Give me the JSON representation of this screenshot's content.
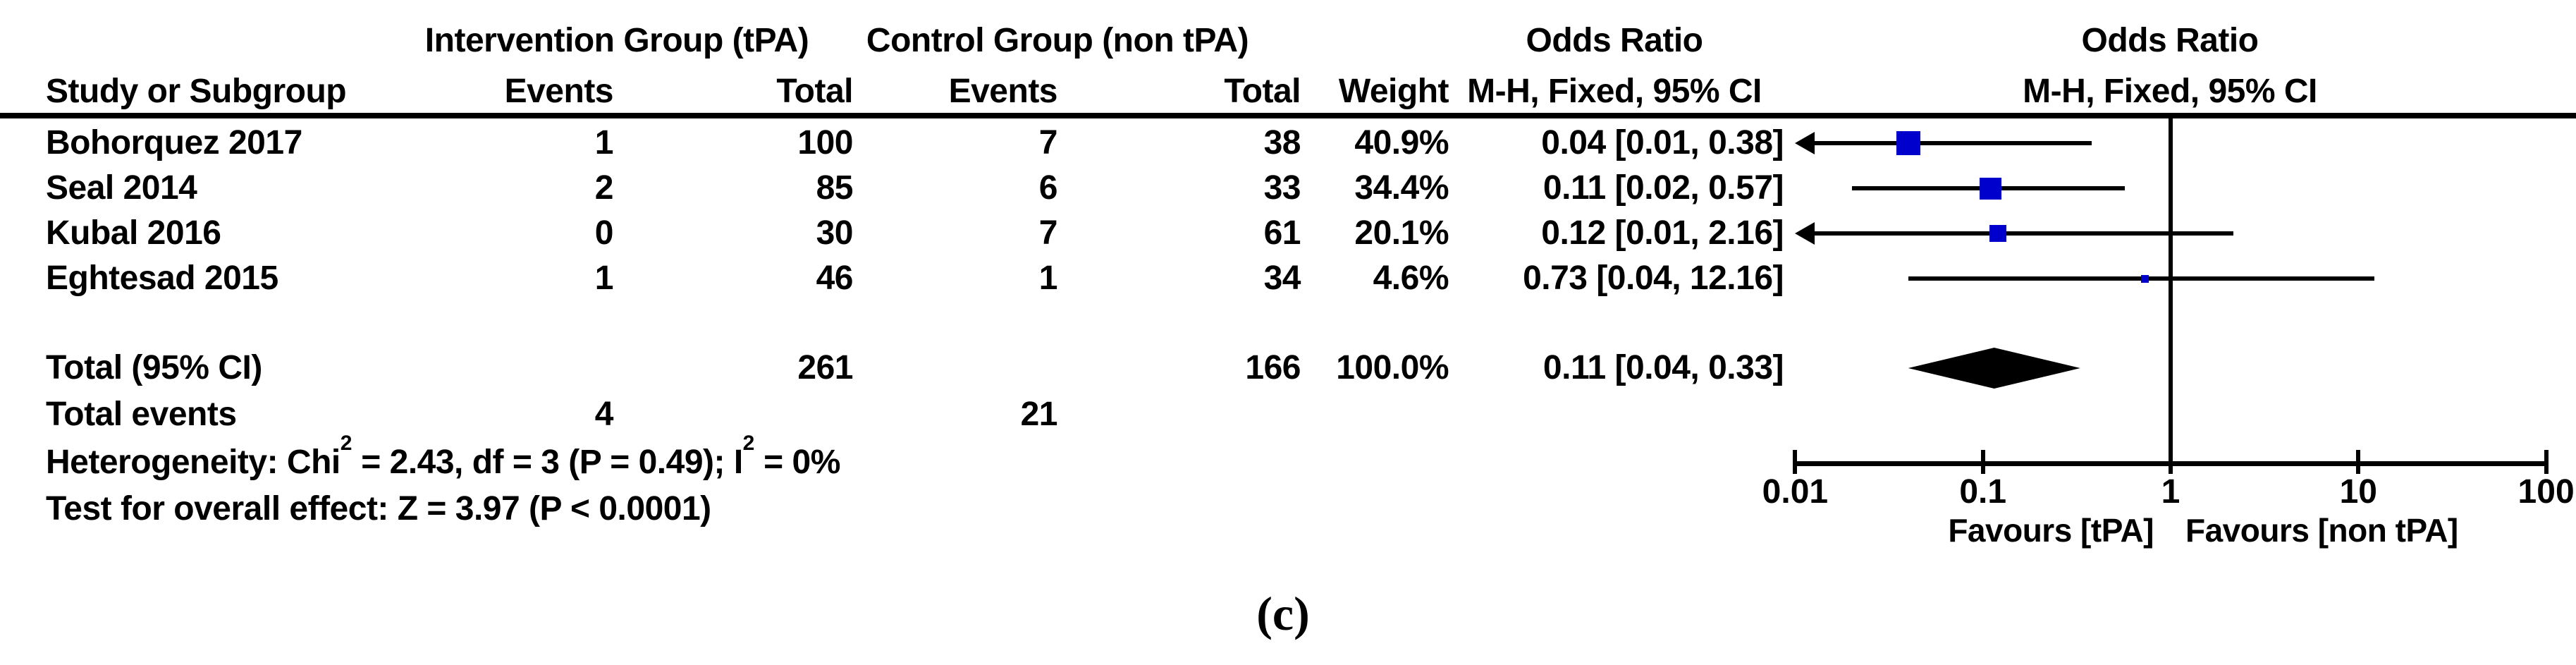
{
  "figure": {
    "caption": "(c)"
  },
  "table": {
    "group_headers": {
      "intervention": "Intervention Group (tPA)",
      "control": "Control Group (non tPA)",
      "or_text": "Odds Ratio",
      "or_plot": "Odds Ratio"
    },
    "col_headers": {
      "study": "Study or Subgroup",
      "int_events": "Events",
      "int_total": "Total",
      "ctl_events": "Events",
      "ctl_total": "Total",
      "weight": "Weight",
      "mh_text": "M-H, Fixed, 95% CI",
      "mh_plot": "M-H, Fixed, 95% CI"
    },
    "rows": [
      {
        "study": "Bohorquez 2017",
        "int_events": "1",
        "int_total": "100",
        "ctl_events": "7",
        "ctl_total": "38",
        "weight": "40.9%",
        "or_ci": "0.04 [0.01, 0.38]"
      },
      {
        "study": "Seal 2014",
        "int_events": "2",
        "int_total": "85",
        "ctl_events": "6",
        "ctl_total": "33",
        "weight": "34.4%",
        "or_ci": "0.11 [0.02, 0.57]"
      },
      {
        "study": "Kubal 2016",
        "int_events": "0",
        "int_total": "30",
        "ctl_events": "7",
        "ctl_total": "61",
        "weight": "20.1%",
        "or_ci": "0.12 [0.01, 2.16]"
      },
      {
        "study": "Eghtesad 2015",
        "int_events": "1",
        "int_total": "46",
        "ctl_events": "1",
        "ctl_total": "34",
        "weight": "4.6%",
        "or_ci": "0.73 [0.04, 12.16]"
      }
    ],
    "total_row": {
      "label": "Total (95% CI)",
      "int_total": "261",
      "ctl_total": "166",
      "weight": "100.0%",
      "or_ci": "0.11 [0.04, 0.33]"
    },
    "total_events": {
      "label": "Total events",
      "int": "4",
      "ctl": "21"
    },
    "heterogeneity": {
      "pre": "Heterogeneity: Chi",
      "sup1": "2",
      "mid": " = 2.43, df = 3 (P = 0.49); I",
      "sup2": "2",
      "post": " = 0%"
    },
    "overall": "Test for overall effect: Z = 3.97 (P < 0.0001)"
  },
  "chart_data": {
    "type": "forest",
    "effect_measure": "Odds Ratio",
    "method": "M-H, Fixed, 95% CI",
    "x_scale": "log10",
    "xlim": [
      0.01,
      100
    ],
    "x_ticks": [
      0.01,
      0.1,
      1,
      10,
      100
    ],
    "x_tick_labels": [
      "0.01",
      "0.1",
      "1",
      "10",
      "100"
    ],
    "null_line": 1,
    "favours_left": "Favours [tPA]",
    "favours_right": "Favours [non tPA]",
    "marker_color": "#0000CC",
    "line_color": "#000000",
    "studies": [
      {
        "name": "Bohorquez 2017",
        "or": 0.04,
        "ci_low": 0.01,
        "ci_high": 0.38,
        "weight_pct": 40.9,
        "arrow_low": true
      },
      {
        "name": "Seal 2014",
        "or": 0.11,
        "ci_low": 0.02,
        "ci_high": 0.57,
        "weight_pct": 34.4,
        "arrow_low": false
      },
      {
        "name": "Kubal 2016",
        "or": 0.12,
        "ci_low": 0.01,
        "ci_high": 2.16,
        "weight_pct": 20.1,
        "arrow_low": true
      },
      {
        "name": "Eghtesad 2015",
        "or": 0.73,
        "ci_low": 0.04,
        "ci_high": 12.16,
        "weight_pct": 4.6,
        "arrow_low": false
      }
    ],
    "total": {
      "or": 0.11,
      "ci_low": 0.04,
      "ci_high": 0.33
    },
    "heterogeneity_stats": {
      "chi2": 2.43,
      "df": 3,
      "p": 0.49,
      "i2_pct": 0
    },
    "overall_effect": {
      "z": 3.97,
      "p": "< 0.0001"
    }
  }
}
